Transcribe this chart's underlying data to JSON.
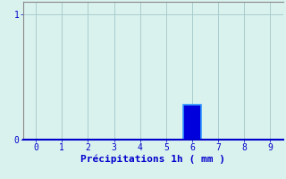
{
  "title": "",
  "xlabel": "Précipitations 1h ( mm )",
  "ylabel": "",
  "xlim": [
    -0.5,
    9.5
  ],
  "ylim": [
    0,
    1.1
  ],
  "yticks": [
    0,
    1
  ],
  "xticks": [
    0,
    1,
    2,
    3,
    4,
    5,
    6,
    7,
    8,
    9
  ],
  "bar_x": [
    6
  ],
  "bar_height": [
    0.28
  ],
  "bar_color": "#0000dd",
  "bar_edge_color": "#3399ff",
  "bar_width": 0.7,
  "background_color": "#daf2ee",
  "grid_color": "#aacccc",
  "axis_color": "#0000cc",
  "spine_color": "#888888",
  "text_color": "#0000cc",
  "tick_fontsize": 7,
  "xlabel_fontsize": 8
}
